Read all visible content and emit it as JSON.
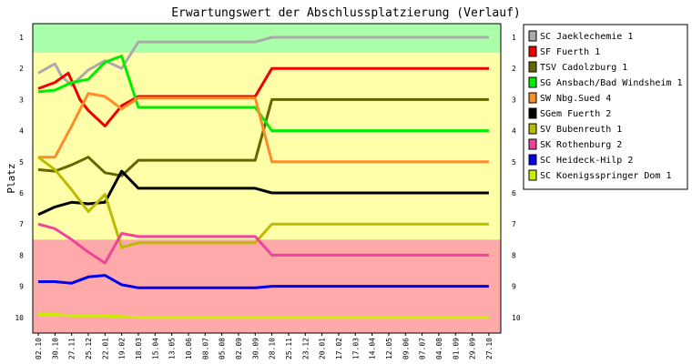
{
  "chart_data": {
    "type": "line",
    "title": "Erwartungswert der Abschlussplatzierung (Verlauf)",
    "xlabel": "",
    "ylabel": "Platz",
    "ylim": [
      10,
      1
    ],
    "y_ticks": [
      1,
      2,
      3,
      4,
      5,
      6,
      7,
      8,
      9,
      10
    ],
    "x_ticks": [
      "02.10",
      "30.10",
      "27.11",
      "25.12",
      "22.01",
      "19.02",
      "18.03",
      "15.04",
      "13.05",
      "10.06",
      "08.07",
      "05.08",
      "02.09",
      "30.09",
      "28.10",
      "25.11",
      "23.12",
      "20.01",
      "17.02",
      "17.03",
      "14.04",
      "12.05",
      "09.06",
      "07.07",
      "04.08",
      "01.09",
      "29.09",
      "27.10"
    ],
    "bands": [
      {
        "from": 0.5,
        "to": 1.5,
        "color": "#aaffaa"
      },
      {
        "from": 1.5,
        "to": 7.5,
        "color": "#ffffaa"
      },
      {
        "from": 7.5,
        "to": 10.5,
        "color": "#ffaaaa"
      }
    ],
    "series": [
      {
        "name": "SC Jaeklechemie 1",
        "color": "#aaaaaa",
        "points": [
          [
            0,
            2.15
          ],
          [
            1,
            1.85
          ],
          [
            1.4,
            2.25
          ],
          [
            2,
            2.55
          ],
          [
            3,
            2.05
          ],
          [
            4,
            1.75
          ],
          [
            5,
            2.0
          ],
          [
            6,
            1.15
          ],
          [
            13,
            1.15
          ],
          [
            14,
            1.0
          ],
          [
            27,
            1.0
          ]
        ]
      },
      {
        "name": "SF Fuerth 1",
        "color": "#ee0000",
        "points": [
          [
            0,
            2.65
          ],
          [
            1,
            2.45
          ],
          [
            1.8,
            2.15
          ],
          [
            2.5,
            3.0
          ],
          [
            3,
            3.35
          ],
          [
            4,
            3.85
          ],
          [
            5,
            3.2
          ],
          [
            6,
            2.9
          ],
          [
            7,
            2.9
          ],
          [
            13,
            2.9
          ],
          [
            14,
            2.0
          ],
          [
            27,
            2.0
          ]
        ]
      },
      {
        "name": "TSV Cadolzburg 1",
        "color": "#666600",
        "points": [
          [
            0,
            5.25
          ],
          [
            1,
            5.3
          ],
          [
            2,
            5.1
          ],
          [
            3,
            4.85
          ],
          [
            4,
            5.35
          ],
          [
            5,
            5.45
          ],
          [
            6,
            4.95
          ],
          [
            13,
            4.95
          ],
          [
            14,
            3.0
          ],
          [
            27,
            3.0
          ]
        ]
      },
      {
        "name": "SG Ansbach/Bad Windsheim 1",
        "color": "#00ee00",
        "points": [
          [
            0,
            2.75
          ],
          [
            1,
            2.7
          ],
          [
            2,
            2.45
          ],
          [
            3,
            2.35
          ],
          [
            4,
            1.8
          ],
          [
            5,
            1.6
          ],
          [
            6,
            3.25
          ],
          [
            13,
            3.25
          ],
          [
            14,
            4.0
          ],
          [
            27,
            4.0
          ]
        ]
      },
      {
        "name": "SW Nbg.Sued 4",
        "color": "#ff8c2a",
        "points": [
          [
            0,
            4.85
          ],
          [
            1,
            4.85
          ],
          [
            2,
            3.85
          ],
          [
            3,
            2.8
          ],
          [
            4,
            2.9
          ],
          [
            5,
            3.3
          ],
          [
            6,
            2.95
          ],
          [
            13,
            2.95
          ],
          [
            14,
            5.0
          ],
          [
            27,
            5.0
          ]
        ]
      },
      {
        "name": "SGem Fuerth 2",
        "color": "#000000",
        "points": [
          [
            0,
            6.7
          ],
          [
            1,
            6.45
          ],
          [
            2,
            6.3
          ],
          [
            3,
            6.35
          ],
          [
            4,
            6.3
          ],
          [
            5,
            5.3
          ],
          [
            6,
            5.85
          ],
          [
            10,
            5.85
          ],
          [
            11,
            5.85
          ],
          [
            13,
            5.85
          ],
          [
            14,
            6.0
          ],
          [
            27,
            6.0
          ]
        ]
      },
      {
        "name": "SV Bubenreuth 1",
        "color": "#bbbb00",
        "points": [
          [
            0,
            4.85
          ],
          [
            1,
            5.25
          ],
          [
            2,
            5.9
          ],
          [
            3,
            6.6
          ],
          [
            4,
            6.05
          ],
          [
            5,
            7.75
          ],
          [
            6,
            7.6
          ],
          [
            13,
            7.6
          ],
          [
            14,
            7.0
          ],
          [
            27,
            7.0
          ]
        ]
      },
      {
        "name": "SK Rothenburg 2",
        "color": "#ee4499",
        "points": [
          [
            0,
            7.0
          ],
          [
            1,
            7.15
          ],
          [
            2,
            7.5
          ],
          [
            3,
            7.9
          ],
          [
            4,
            8.25
          ],
          [
            5,
            7.3
          ],
          [
            6,
            7.4
          ],
          [
            13,
            7.4
          ],
          [
            14,
            8.0
          ],
          [
            27,
            8.0
          ]
        ]
      },
      {
        "name": "SC Heideck-Hilp 2",
        "color": "#0000ee",
        "points": [
          [
            0,
            8.85
          ],
          [
            1,
            8.85
          ],
          [
            2,
            8.9
          ],
          [
            3,
            8.7
          ],
          [
            4,
            8.65
          ],
          [
            5,
            8.95
          ],
          [
            6,
            9.05
          ],
          [
            13,
            9.05
          ],
          [
            14,
            9.0
          ],
          [
            27,
            9.0
          ]
        ]
      },
      {
        "name": "SC Koenigsspringer Dom 1",
        "color": "#ccee00",
        "points": [
          [
            0,
            9.9
          ],
          [
            1,
            9.9
          ],
          [
            2,
            9.95
          ],
          [
            3,
            9.95
          ],
          [
            4,
            9.95
          ],
          [
            6,
            10.0
          ],
          [
            27,
            10.0
          ]
        ]
      }
    ]
  }
}
